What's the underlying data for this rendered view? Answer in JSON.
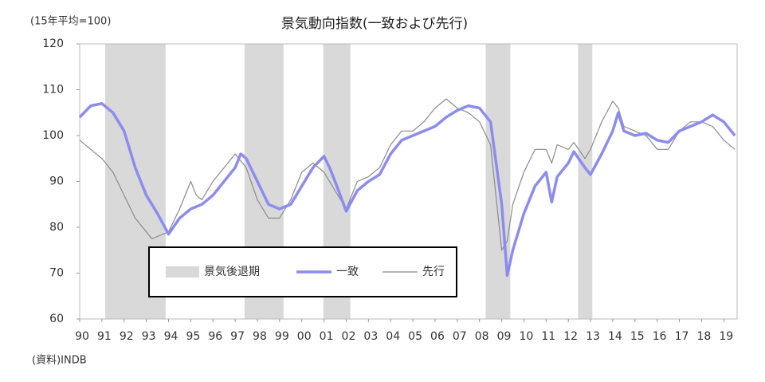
{
  "chart_data": {
    "type": "line",
    "title": "景気動向指数(一致および先行)",
    "subtitle": "(15年平均=100)",
    "source": "(資料)INDB",
    "xlim": [
      1990,
      2019.6
    ],
    "ylim": [
      60,
      120
    ],
    "yticks": [
      60,
      70,
      80,
      90,
      100,
      110,
      120
    ],
    "xticks": [
      {
        "value": 1990,
        "label": "90"
      },
      {
        "value": 1991,
        "label": "91"
      },
      {
        "value": 1992,
        "label": "92"
      },
      {
        "value": 1993,
        "label": "93"
      },
      {
        "value": 1994,
        "label": "94"
      },
      {
        "value": 1995,
        "label": "95"
      },
      {
        "value": 1996,
        "label": "96"
      },
      {
        "value": 1997,
        "label": "97"
      },
      {
        "value": 1998,
        "label": "98"
      },
      {
        "value": 1999,
        "label": "99"
      },
      {
        "value": 2000,
        "label": "00"
      },
      {
        "value": 2001,
        "label": "01"
      },
      {
        "value": 2002,
        "label": "02"
      },
      {
        "value": 2003,
        "label": "03"
      },
      {
        "value": 2004,
        "label": "04"
      },
      {
        "value": 2005,
        "label": "05"
      },
      {
        "value": 2006,
        "label": "06"
      },
      {
        "value": 2007,
        "label": "07"
      },
      {
        "value": 2008,
        "label": "08"
      },
      {
        "value": 2009,
        "label": "09"
      },
      {
        "value": 2010,
        "label": "10"
      },
      {
        "value": 2011,
        "label": "11"
      },
      {
        "value": 2012,
        "label": "12"
      },
      {
        "value": 2013,
        "label": "13"
      },
      {
        "value": 2014,
        "label": "14"
      },
      {
        "value": 2015,
        "label": "15"
      },
      {
        "value": 2016,
        "label": "16"
      },
      {
        "value": 2017,
        "label": "17"
      },
      {
        "value": 2018,
        "label": "18"
      },
      {
        "value": 2019,
        "label": "19"
      }
    ],
    "grid": false,
    "shading": {
      "name": "景気後退期",
      "color": "#d9d9d9",
      "periods": [
        [
          1991.15,
          1993.87
        ],
        [
          1997.42,
          1999.18
        ],
        [
          2000.97,
          2002.19
        ],
        [
          2008.28,
          2009.39
        ],
        [
          2012.44,
          2013.08
        ]
      ]
    },
    "series": [
      {
        "name": "一致",
        "color": "#8c8cf0",
        "width": 3.5,
        "x": [
          1990,
          1990.5,
          1991,
          1991.5,
          1992,
          1992.5,
          1993,
          1993.5,
          1994,
          1994.5,
          1995,
          1995.5,
          1996,
          1996.5,
          1997,
          1997.25,
          1997.5,
          1998,
          1998.5,
          1999,
          1999.5,
          2000,
          2000.5,
          2001,
          2001.25,
          2001.5,
          2002,
          2002.5,
          2003,
          2003.5,
          2004,
          2004.5,
          2005,
          2005.5,
          2006,
          2006.5,
          2007,
          2007.5,
          2008,
          2008.5,
          2009,
          2009.25,
          2009.5,
          2010,
          2010.5,
          2011,
          2011.25,
          2011.5,
          2012,
          2012.25,
          2012.75,
          2013,
          2013.5,
          2014,
          2014.25,
          2014.5,
          2015,
          2015.5,
          2016,
          2016.5,
          2017,
          2017.5,
          2018,
          2018.5,
          2019,
          2019.5
        ],
        "values": [
          104,
          106.5,
          107,
          105,
          101,
          93,
          87,
          83,
          78.5,
          82,
          84,
          85,
          87,
          90,
          93,
          96,
          95,
          90,
          85,
          84,
          85,
          89,
          93,
          95.5,
          93,
          90,
          83.5,
          88,
          90,
          91.5,
          96,
          99,
          100,
          101,
          102,
          104,
          105.5,
          106.5,
          106,
          103,
          85,
          69.5,
          75,
          83,
          89,
          92,
          85.5,
          91,
          94,
          96.5,
          93,
          91.5,
          96,
          101,
          105,
          101,
          100,
          100.5,
          99,
          98.5,
          101,
          102,
          103,
          104.5,
          103,
          100
        ]
      },
      {
        "name": "先行",
        "color": "#8a8a8a",
        "width": 1.2,
        "x": [
          1990,
          1990.5,
          1991,
          1991.5,
          1992,
          1992.5,
          1993,
          1993.25,
          1993.5,
          1994,
          1994.5,
          1995,
          1995.25,
          1995.5,
          1996,
          1996.5,
          1997,
          1997.5,
          1998,
          1998.5,
          1999,
          1999.5,
          2000,
          2000.5,
          2001,
          2001.5,
          2002,
          2002.5,
          2003,
          2003.5,
          2004,
          2004.5,
          2005,
          2005.5,
          2006,
          2006.5,
          2007,
          2007.5,
          2008,
          2008.5,
          2009,
          2009.25,
          2009.5,
          2010,
          2010.5,
          2011,
          2011.25,
          2011.5,
          2012,
          2012.25,
          2012.75,
          2013,
          2013.5,
          2014,
          2014.25,
          2014.5,
          2015,
          2015.5,
          2016,
          2016.5,
          2017,
          2017.5,
          2018,
          2018.5,
          2019,
          2019.5
        ],
        "values": [
          99,
          97,
          95,
          92,
          87,
          82,
          79,
          77.5,
          78,
          79,
          84,
          90,
          87,
          86,
          90,
          93,
          96,
          93,
          86,
          82,
          82,
          86,
          92,
          94,
          92,
          88,
          84,
          90,
          91,
          93,
          98,
          101,
          101,
          103,
          106,
          108,
          106,
          105,
          103,
          98,
          75,
          77,
          85,
          92,
          97,
          97,
          94,
          98,
          97,
          98.5,
          95,
          97,
          103,
          107.5,
          106,
          102,
          101,
          100,
          97,
          97,
          101,
          103,
          103,
          102,
          99,
          97
        ]
      }
    ]
  }
}
